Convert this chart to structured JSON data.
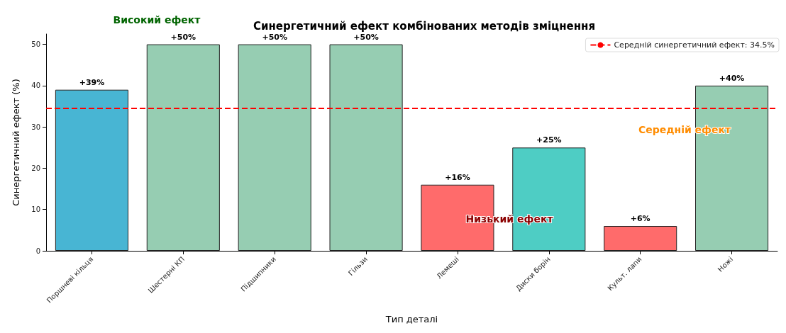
{
  "chart_data": {
    "type": "bar",
    "title": "Синергетичний ефект комбінованих методів зміцнення",
    "xlabel": "Тип деталі",
    "ylabel": "Синергетичний ефект (%)",
    "categories": [
      "Поршневі кільця",
      "Шестерні КП",
      "Підшипники",
      "Гільзи",
      "Лемеші",
      "Диски борін",
      "Культ. лапи",
      "Ножі"
    ],
    "values": [
      39,
      50,
      50,
      50,
      16,
      25,
      6,
      40
    ],
    "colors": [
      "#48b5d3",
      "#96cdb2",
      "#96cdb2",
      "#96cdb2",
      "#ff6b6b",
      "#4ecdc4",
      "#ff6b6b",
      "#96cdb2"
    ],
    "value_labels": [
      "+39%",
      "+50%",
      "+50%",
      "+50%",
      "+16%",
      "+25%",
      "+6%",
      "+40%"
    ],
    "ylim": [
      0,
      52.5
    ],
    "yticks": [
      0,
      10,
      20,
      30,
      40,
      50
    ],
    "grid": false,
    "legend": "top right",
    "ref_lines": [
      {
        "axis": "y",
        "value": 34.5,
        "label": "Середній синергетичний ефект: 34.5%",
        "color": "#ff0000",
        "line_style": "dashed"
      }
    ],
    "annotations": [
      "Високий ефект",
      "Середній ефект",
      "Низький ефект"
    ]
  }
}
